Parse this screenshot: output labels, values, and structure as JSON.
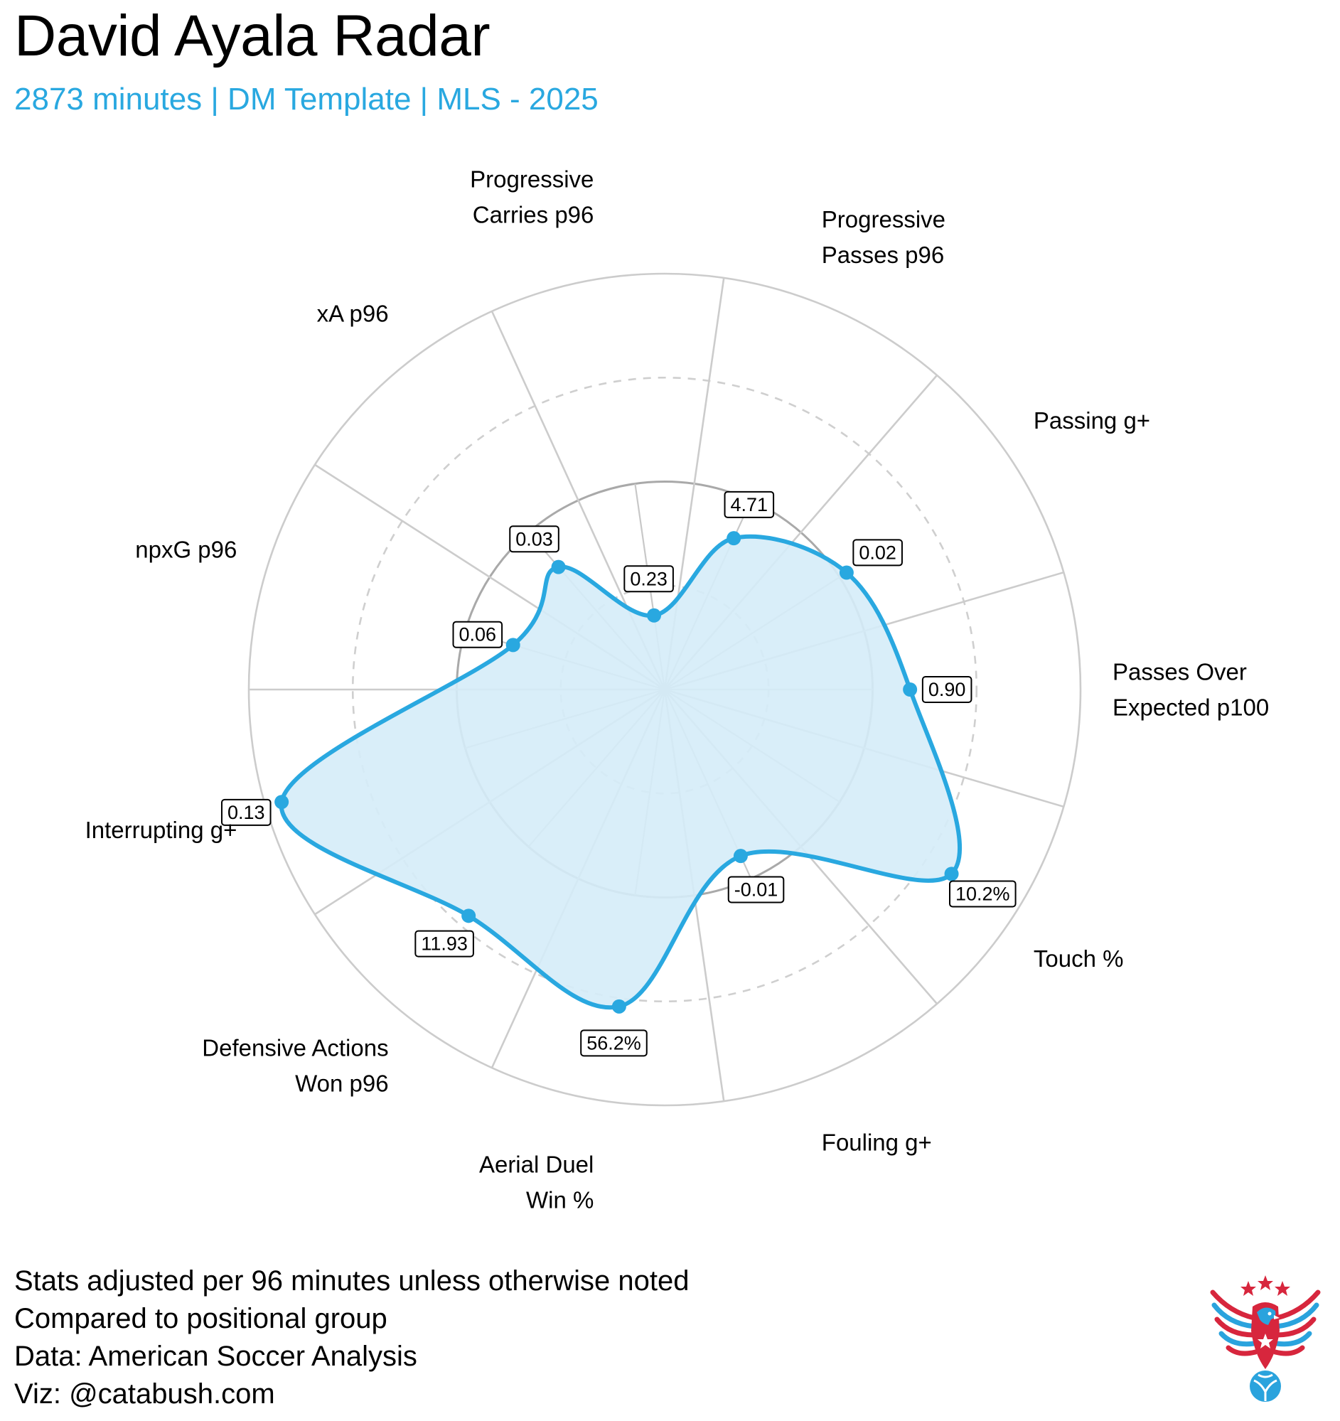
{
  "title": "David Ayala Radar",
  "subtitle": "2873 minutes | DM Template | MLS - 2025",
  "footnotes": [
    "Stats adjusted per 96 minutes unless otherwise noted",
    "Compared to positional group",
    "Data: American Soccer Analysis",
    "Viz: @catabush.com"
  ],
  "logo": {
    "icon": "eagle-soccer-ball-logo",
    "colors": {
      "red": "#d7263d",
      "blue": "#2aa3dd",
      "star": "#d7263d"
    }
  },
  "colors": {
    "accent": "#29a8e0",
    "fill": "#d5ecf8",
    "grid": "#cccccc",
    "median_ring": "#a9a9a9",
    "dashed_ring": "#cfcfcf"
  },
  "chart_data": {
    "type": "radar",
    "title": "David Ayala Radar",
    "subtitle": "2873 minutes | DM Template | MLS - 2025",
    "scale": "percentile",
    "range": [
      0,
      100
    ],
    "rings": [
      25,
      50,
      75,
      100
    ],
    "dashed_rings": [
      25,
      75
    ],
    "median_ring": 50,
    "metrics": [
      {
        "name": "Passes Over Expected p100",
        "lines": [
          "Passes Over",
          "Expected p100"
        ],
        "value": "0.90",
        "percentile": 59
      },
      {
        "name": "Passing g+",
        "lines": [
          "Passing g+"
        ],
        "value": "0.02",
        "percentile": 52
      },
      {
        "name": "Progressive Passes p96",
        "lines": [
          "Progressive",
          "Passes p96"
        ],
        "value": "4.71",
        "percentile": 40
      },
      {
        "name": "Progressive Carries p96",
        "lines": [
          "Progressive",
          "Carries p96"
        ],
        "value": "0.23",
        "percentile": 18
      },
      {
        "name": "xA p96",
        "lines": [
          "xA p96"
        ],
        "value": "0.03",
        "percentile": 39
      },
      {
        "name": "npxG p96",
        "lines": [
          "npxG p96"
        ],
        "value": "0.06",
        "percentile": 38
      },
      {
        "name": "Interrupting g+",
        "lines": [
          "Interrupting g+"
        ],
        "value": "0.13",
        "percentile": 96
      },
      {
        "name": "Defensive Actions Won p96",
        "lines": [
          "Defensive Actions",
          "Won p96"
        ],
        "value": "11.93",
        "percentile": 72
      },
      {
        "name": "Aerial Duel Win %",
        "lines": [
          "Aerial Duel",
          "Win %"
        ],
        "value": "56.2%",
        "percentile": 77
      },
      {
        "name": "Fouling g+",
        "lines": [
          "Fouling g+"
        ],
        "value": "-0.01",
        "percentile": 44
      },
      {
        "name": "Touch %",
        "lines": [
          "Touch %"
        ],
        "value": "10.2%",
        "percentile": 82
      }
    ]
  }
}
